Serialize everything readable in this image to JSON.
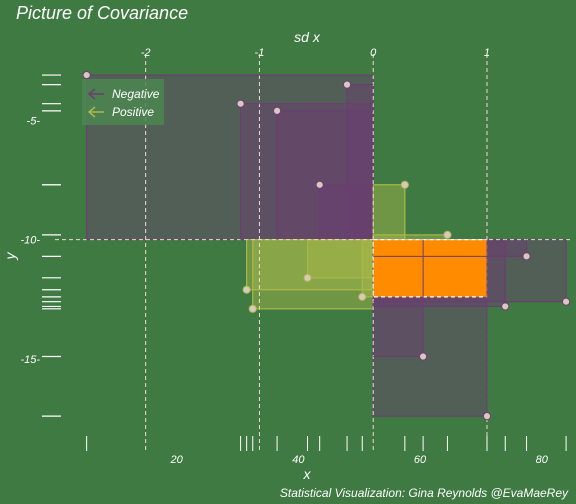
{
  "chart_data": {
    "type": "scatter",
    "title": "Picture of Covariance",
    "xlabel": "x",
    "ylabel": "y",
    "x2label": "sd x",
    "caption": "Statistical Visualization: Gina Reynolds @EvaMaeRey",
    "xlim": [
      0,
      83
    ],
    "ylim": [
      -18.4,
      -2.3
    ],
    "x_ticks": [
      20,
      40,
      60,
      80
    ],
    "y_ticks": [
      -5,
      -10,
      -15
    ],
    "sd_ticks": [
      -2,
      -1,
      0,
      1
    ],
    "x_mean": 52.3,
    "y_mean": -10.0,
    "x_sd": 18.7,
    "legend": {
      "position": "top-left",
      "entries": [
        {
          "label": "Negative",
          "color": "#6b3e72"
        },
        {
          "label": "Positive",
          "color": "#a9b84a"
        }
      ]
    },
    "highlight": {
      "x": [
        52.3,
        71.0
      ],
      "y": [
        -12.4,
        -10.0
      ],
      "color": "#ff8c00"
    },
    "points": [
      {
        "x": 5.2,
        "y": -3.1
      },
      {
        "x": 48.0,
        "y": -3.5
      },
      {
        "x": 30.5,
        "y": -4.3
      },
      {
        "x": 36.5,
        "y": -4.6
      },
      {
        "x": 43.5,
        "y": -7.7
      },
      {
        "x": 57.5,
        "y": -7.7
      },
      {
        "x": 64.5,
        "y": -9.8
      },
      {
        "x": 77.5,
        "y": -10.7
      },
      {
        "x": 41.5,
        "y": -11.6
      },
      {
        "x": 31.5,
        "y": -12.1
      },
      {
        "x": 50.5,
        "y": -12.4
      },
      {
        "x": 74.0,
        "y": -12.8
      },
      {
        "x": 32.5,
        "y": -12.9
      },
      {
        "x": 84.0,
        "y": -12.6
      },
      {
        "x": 60.5,
        "y": -14.9
      },
      {
        "x": 71.0,
        "y": -17.4
      }
    ],
    "colors": {
      "background": "#3f7a43",
      "negative": "#6b3e72",
      "positive": "#a9b84a",
      "point": "#d9c7c0",
      "highlight": "#ff8c00",
      "reference_line": "#f2d8cf"
    }
  }
}
